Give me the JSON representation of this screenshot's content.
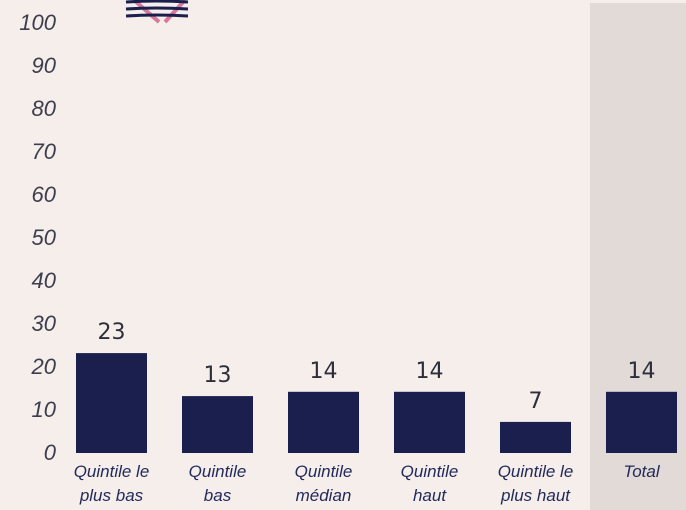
{
  "chart_data": {
    "type": "bar",
    "title": "",
    "xlabel": "",
    "ylabel": "",
    "categories": [
      [
        "Quintile le",
        "plus bas"
      ],
      [
        "Quintile",
        "bas"
      ],
      [
        "Quintile",
        "médian"
      ],
      [
        "Quintile",
        "haut"
      ],
      [
        "Quintile le",
        "plus haut"
      ],
      [
        "Total"
      ]
    ],
    "values": [
      23,
      13,
      14,
      14,
      7,
      14
    ],
    "value_labels": [
      "23",
      "13",
      "14",
      "14",
      "7",
      "14"
    ],
    "ylim": [
      0,
      100
    ],
    "yticks": [
      0,
      10,
      20,
      30,
      40,
      50,
      60,
      70,
      80,
      90,
      100
    ],
    "highlighted_category_index": 5,
    "grid": false,
    "legend": "none"
  },
  "colors": {
    "background": "#f5eeeb",
    "bar": "#1a1f4e",
    "highlight_band": "#e2dad7",
    "logo_lines": "#1a1f4e",
    "logo_cross": "#d9789a"
  },
  "icons": {
    "logo": "striped-flag-logo-icon"
  }
}
